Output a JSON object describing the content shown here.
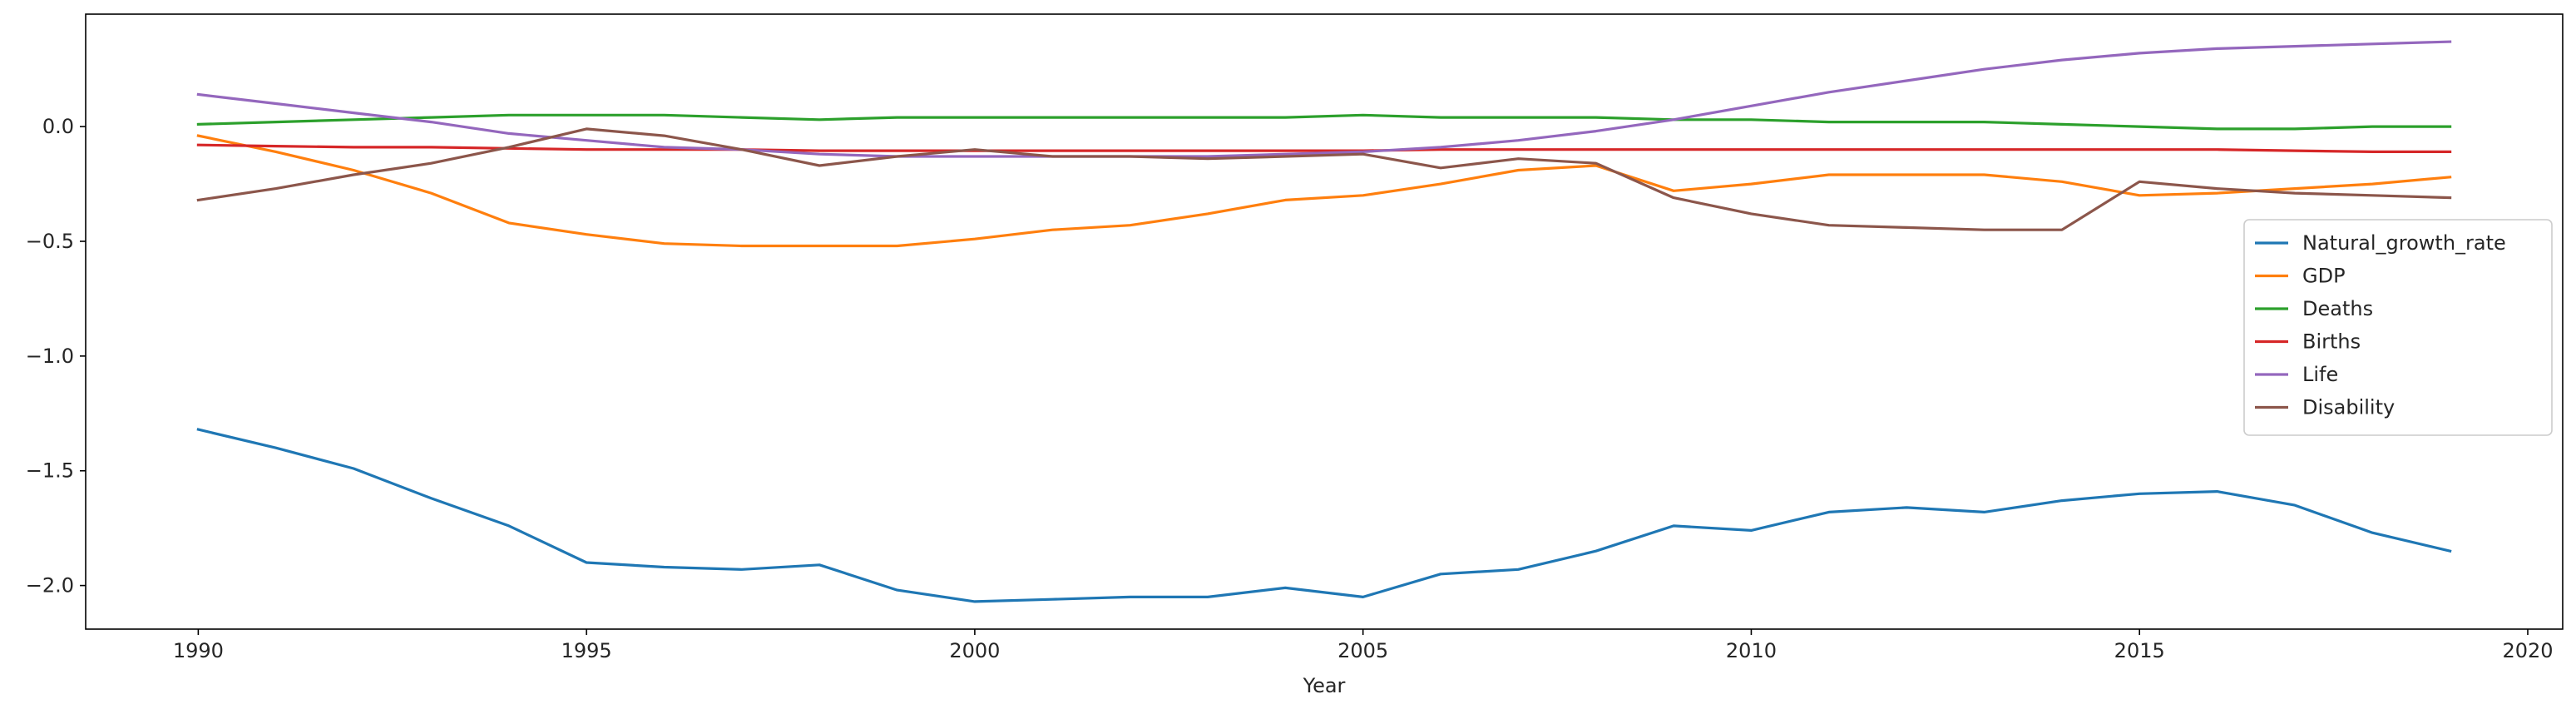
{
  "chart_data": {
    "type": "line",
    "xlabel": "Year",
    "ylabel": "",
    "title": "",
    "xlim": [
      1988.55,
      2020.45
    ],
    "ylim": [
      -2.19,
      0.49
    ],
    "xticks": [
      1990,
      1995,
      2000,
      2005,
      2010,
      2015,
      2020
    ],
    "yticks": [
      0.0,
      -0.5,
      -1.0,
      -1.5,
      -2.0
    ],
    "ytick_labels": [
      "0.0",
      "−0.5",
      "−1.0",
      "−1.5",
      "−2.0"
    ],
    "grid": false,
    "legend_position": "center-right",
    "x": [
      1990,
      1991,
      1992,
      1993,
      1994,
      1995,
      1996,
      1997,
      1998,
      1999,
      2000,
      2001,
      2002,
      2003,
      2004,
      2005,
      2006,
      2007,
      2008,
      2009,
      2010,
      2011,
      2012,
      2013,
      2014,
      2015,
      2016,
      2017,
      2018,
      2019
    ],
    "series": [
      {
        "name": "Natural_growth_rate",
        "color": "#1f77b4",
        "values": [
          -1.32,
          -1.4,
          -1.49,
          -1.62,
          -1.74,
          -1.9,
          -1.92,
          -1.93,
          -1.91,
          -2.02,
          -2.07,
          -2.06,
          -2.05,
          -2.05,
          -2.01,
          -2.05,
          -1.95,
          -1.93,
          -1.85,
          -1.74,
          -1.76,
          -1.68,
          -1.66,
          -1.68,
          -1.63,
          -1.6,
          -1.59,
          -1.65,
          -1.77,
          -1.85
        ]
      },
      {
        "name": "GDP",
        "color": "#ff7f0e",
        "values": [
          -0.04,
          -0.11,
          -0.19,
          -0.29,
          -0.42,
          -0.47,
          -0.51,
          -0.52,
          -0.52,
          -0.52,
          -0.49,
          -0.45,
          -0.43,
          -0.38,
          -0.32,
          -0.3,
          -0.25,
          -0.19,
          -0.17,
          -0.28,
          -0.25,
          -0.21,
          -0.21,
          -0.21,
          -0.24,
          -0.3,
          -0.29,
          -0.27,
          -0.25,
          -0.22
        ]
      },
      {
        "name": "Deaths",
        "color": "#2ca02c",
        "values": [
          0.01,
          0.02,
          0.03,
          0.04,
          0.05,
          0.05,
          0.05,
          0.04,
          0.03,
          0.04,
          0.04,
          0.04,
          0.04,
          0.04,
          0.04,
          0.05,
          0.04,
          0.04,
          0.04,
          0.03,
          0.03,
          0.02,
          0.02,
          0.02,
          0.01,
          0.0,
          -0.01,
          -0.01,
          0.0,
          0.0
        ]
      },
      {
        "name": "Births",
        "color": "#d62728",
        "values": [
          -0.08,
          -0.085,
          -0.09,
          -0.09,
          -0.095,
          -0.1,
          -0.1,
          -0.1,
          -0.105,
          -0.105,
          -0.105,
          -0.105,
          -0.105,
          -0.105,
          -0.105,
          -0.105,
          -0.1,
          -0.1,
          -0.1,
          -0.1,
          -0.1,
          -0.1,
          -0.1,
          -0.1,
          -0.1,
          -0.1,
          -0.1,
          -0.105,
          -0.11,
          -0.11
        ]
      },
      {
        "name": "Life",
        "color": "#9467bd",
        "values": [
          0.14,
          0.1,
          0.06,
          0.02,
          -0.03,
          -0.06,
          -0.09,
          -0.1,
          -0.12,
          -0.13,
          -0.13,
          -0.13,
          -0.13,
          -0.13,
          -0.12,
          -0.11,
          -0.09,
          -0.06,
          -0.02,
          0.03,
          0.09,
          0.15,
          0.2,
          0.25,
          0.29,
          0.32,
          0.34,
          0.35,
          0.36,
          0.37
        ]
      },
      {
        "name": "Disability",
        "color": "#8c564b",
        "values": [
          -0.32,
          -0.27,
          -0.21,
          -0.16,
          -0.09,
          -0.01,
          -0.04,
          -0.1,
          -0.17,
          -0.13,
          -0.1,
          -0.13,
          -0.13,
          -0.14,
          -0.13,
          -0.12,
          -0.18,
          -0.14,
          -0.16,
          -0.31,
          -0.38,
          -0.43,
          -0.44,
          -0.45,
          -0.45,
          -0.24,
          -0.27,
          -0.29,
          -0.3,
          -0.31
        ]
      }
    ]
  }
}
